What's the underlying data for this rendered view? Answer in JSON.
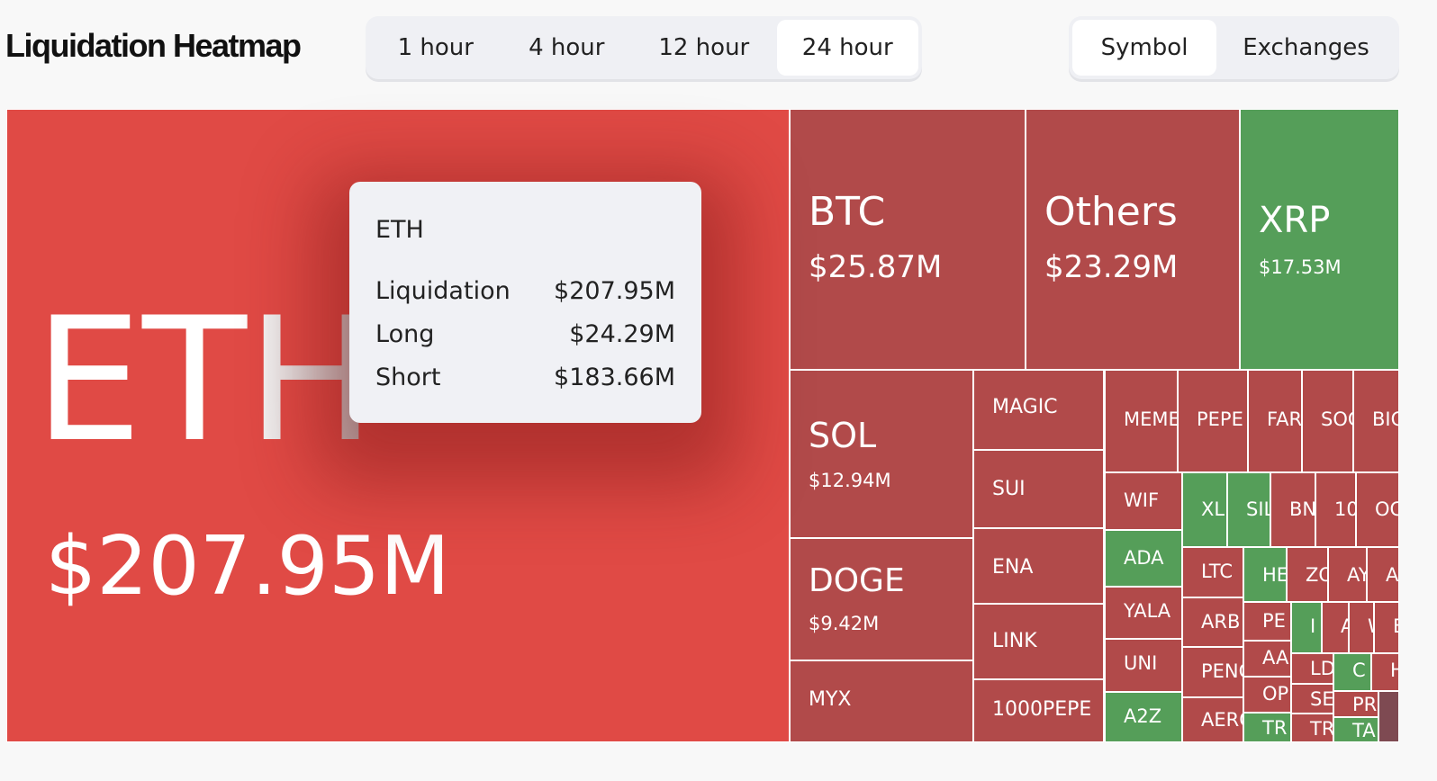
{
  "header": {
    "title": "Liquidation Heatmap",
    "time_ranges": [
      {
        "label": "1 hour",
        "active": false
      },
      {
        "label": "4 hour",
        "active": false
      },
      {
        "label": "12 hour",
        "active": false
      },
      {
        "label": "24 hour",
        "active": true
      }
    ],
    "views": [
      {
        "label": "Symbol",
        "active": true
      },
      {
        "label": "Exchanges",
        "active": false
      }
    ]
  },
  "colors": {
    "eth": "#e04a45",
    "short_heavy": "#b14a4a",
    "long_heavy": "#559e59",
    "other": "#7e4a52"
  },
  "cells": [
    {
      "symbol": "ETH",
      "value": "$207.95M",
      "color": "eth"
    },
    {
      "symbol": "BTC",
      "value": "$25.87M",
      "color": "short_heavy"
    },
    {
      "symbol": "Others",
      "value": "$23.29M",
      "color": "short_heavy"
    },
    {
      "symbol": "XRP",
      "value": "$17.53M",
      "color": "long_heavy"
    },
    {
      "symbol": "SOL",
      "value": "$12.94M",
      "color": "short_heavy"
    },
    {
      "symbol": "DOGE",
      "value": "$9.42M",
      "color": "short_heavy"
    },
    {
      "symbol": "MYX",
      "color": "short_heavy"
    },
    {
      "symbol": "MAGIC",
      "color": "short_heavy"
    },
    {
      "symbol": "SUI",
      "color": "short_heavy"
    },
    {
      "symbol": "ENA",
      "color": "short_heavy"
    },
    {
      "symbol": "LINK",
      "color": "short_heavy"
    },
    {
      "symbol": "1000PEPE",
      "color": "short_heavy"
    },
    {
      "symbol": "MEME",
      "color": "short_heavy"
    },
    {
      "symbol": "PEPE",
      "color": "short_heavy"
    },
    {
      "symbol": "FAR",
      "color": "short_heavy"
    },
    {
      "symbol": "SOC",
      "color": "short_heavy"
    },
    {
      "symbol": "BIG",
      "color": "short_heavy"
    },
    {
      "symbol": "WIF",
      "color": "short_heavy"
    },
    {
      "symbol": "ADA",
      "color": "long_heavy"
    },
    {
      "symbol": "YALA",
      "color": "short_heavy"
    },
    {
      "symbol": "UNI",
      "color": "short_heavy"
    },
    {
      "symbol": "A2Z",
      "color": "long_heavy"
    },
    {
      "symbol": "XLM",
      "color": "long_heavy"
    },
    {
      "symbol": "SIL",
      "color": "long_heavy"
    },
    {
      "symbol": "BN",
      "color": "short_heavy"
    },
    {
      "symbol": "10",
      "color": "short_heavy"
    },
    {
      "symbol": "OC",
      "color": "short_heavy"
    },
    {
      "symbol": "LTC",
      "color": "short_heavy"
    },
    {
      "symbol": "ARB",
      "color": "short_heavy"
    },
    {
      "symbol": "PENG",
      "color": "short_heavy"
    },
    {
      "symbol": "AERO",
      "color": "short_heavy"
    },
    {
      "symbol": "HE",
      "color": "long_heavy"
    },
    {
      "symbol": "ZO",
      "color": "short_heavy"
    },
    {
      "symbol": "AY",
      "color": "short_heavy"
    },
    {
      "symbol": "AS",
      "color": "short_heavy"
    },
    {
      "symbol": "PE",
      "color": "short_heavy"
    },
    {
      "symbol": "AA",
      "color": "short_heavy"
    },
    {
      "symbol": "OP",
      "color": "short_heavy"
    },
    {
      "symbol": "TR",
      "color": "long_heavy"
    },
    {
      "symbol": "I",
      "color": "long_heavy"
    },
    {
      "symbol": "A",
      "color": "short_heavy"
    },
    {
      "symbol": "W",
      "color": "short_heavy"
    },
    {
      "symbol": "E",
      "color": "short_heavy"
    },
    {
      "symbol": "LD",
      "color": "short_heavy"
    },
    {
      "symbol": "C",
      "color": "long_heavy"
    },
    {
      "symbol": "H",
      "color": "short_heavy"
    },
    {
      "symbol": "SE",
      "color": "short_heavy"
    },
    {
      "symbol": "TR",
      "color": "short_heavy"
    },
    {
      "symbol": "PR",
      "color": "short_heavy"
    },
    {
      "symbol": "TA",
      "color": "long_heavy"
    },
    {
      "symbol": "",
      "color": "other"
    }
  ],
  "tooltip": {
    "symbol": "ETH",
    "rows": [
      {
        "label": "Liquidation",
        "value": "$207.95M"
      },
      {
        "label": "Long",
        "value": "$24.29M"
      },
      {
        "label": "Short",
        "value": "$183.66M"
      }
    ]
  }
}
